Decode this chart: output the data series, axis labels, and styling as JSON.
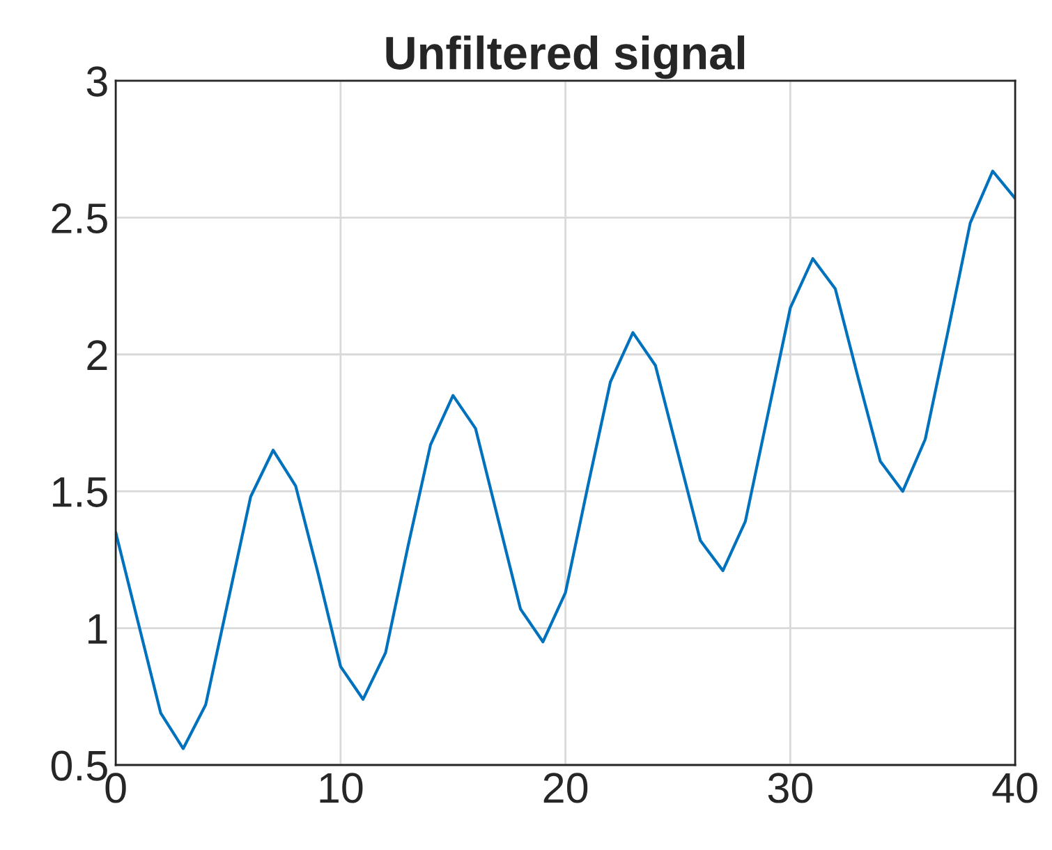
{
  "chart_data": {
    "type": "line",
    "title": "Unfiltered signal",
    "x": [
      0,
      1,
      2,
      3,
      4,
      5,
      6,
      7,
      8,
      9,
      10,
      11,
      12,
      13,
      14,
      15,
      16,
      17,
      18,
      19,
      20,
      21,
      22,
      23,
      24,
      25,
      26,
      27,
      28,
      29,
      30,
      31,
      32,
      33,
      34,
      35,
      36,
      37,
      38,
      39,
      40
    ],
    "series": [
      {
        "color": "#0072bd",
        "values": [
          1.35,
          1.02,
          0.69,
          0.56,
          0.72,
          1.1,
          1.48,
          1.65,
          1.52,
          1.2,
          0.86,
          0.74,
          0.91,
          1.3,
          1.67,
          1.85,
          1.73,
          1.4,
          1.07,
          0.95,
          1.13,
          1.52,
          1.9,
          2.08,
          1.96,
          1.64,
          1.32,
          1.21,
          1.39,
          1.78,
          2.17,
          2.35,
          2.24,
          1.92,
          1.61,
          1.5,
          1.69,
          2.08,
          2.48,
          2.67,
          2.57
        ]
      }
    ],
    "xlim": [
      0,
      40
    ],
    "xticks": [
      0,
      10,
      20,
      30,
      40
    ],
    "ylim": [
      0.5,
      3
    ],
    "yticks": [
      0.5,
      1,
      1.5,
      2,
      2.5,
      3
    ],
    "grid": true,
    "marker": "none",
    "line_style": "solid"
  }
}
